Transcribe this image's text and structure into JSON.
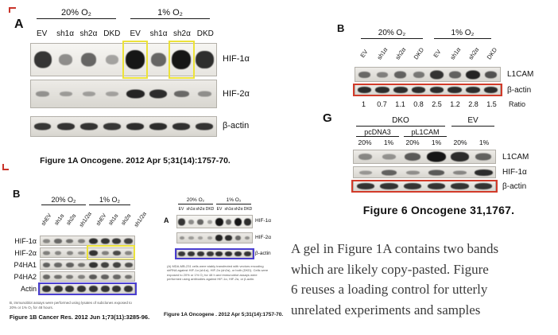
{
  "colors": {
    "yellow": "#ece23a",
    "red": "#d23b2a",
    "purple": "#4a3ed0"
  },
  "panelA": {
    "label": "A",
    "groups": [
      "20% O₂",
      "1% O₂"
    ],
    "lanes": [
      "EV",
      "sh1α",
      "sh2α",
      "DKD",
      "EV",
      "sh1α",
      "sh2α",
      "DKD"
    ],
    "rows": [
      {
        "label": "HIF-1α",
        "h": 24,
        "bands": [
          0.8,
          0.25,
          0.5,
          0.12,
          1,
          0.5,
          1,
          0.85
        ],
        "boxes": [
          {
            "from": 4,
            "to": 4,
            "color": "yellow"
          },
          {
            "from": 6,
            "to": 6,
            "color": "yellow"
          }
        ]
      },
      {
        "label": "HIF-2α",
        "h": 12,
        "bands": [
          0.18,
          0.12,
          0.1,
          0.08,
          0.9,
          0.85,
          0.45,
          0.2
        ]
      },
      {
        "label": "β-actin",
        "h": 10,
        "bands": [
          0.78,
          0.8,
          0.8,
          0.78,
          0.85,
          0.85,
          0.82,
          0.8
        ]
      }
    ],
    "caption": "Figure 1A Oncogene. 2012 Apr 5;31(14):1757-70."
  },
  "panelB_left": {
    "label": "B",
    "groups": [
      "20% O₂",
      "1% O₂"
    ],
    "lanes": [
      "shEV",
      "sh1α",
      "sh2α",
      "sh1/2α",
      "shEV",
      "sh1α",
      "sh2α",
      "sh1/2α"
    ],
    "rows": [
      {
        "label": "HIF-1α",
        "h": 8,
        "bands": [
          0.25,
          0.45,
          0.4,
          0.3,
          0.85,
          0.8,
          0.78,
          0.7
        ]
      },
      {
        "label": "HIF-2α",
        "h": 8,
        "bands": [
          0.3,
          0.25,
          0.25,
          0.2,
          0.8,
          0.3,
          0.65,
          0.25
        ],
        "boxes": [
          {
            "from": 4,
            "to": 7,
            "color": "yellow"
          }
        ]
      },
      {
        "label": "P4HA1",
        "h": 8,
        "bands": [
          0.5,
          0.45,
          0.5,
          0.4,
          0.8,
          0.7,
          0.7,
          0.6
        ]
      },
      {
        "label": "P4HA2",
        "h": 8,
        "bands": [
          0.45,
          0.4,
          0.35,
          0.3,
          0.55,
          0.5,
          0.45,
          0.4
        ]
      },
      {
        "label": "Actin",
        "h": 9,
        "bands": [
          0.8,
          0.8,
          0.8,
          0.8,
          0.8,
          0.8,
          0.8,
          0.8
        ],
        "boxes": [
          {
            "full": true,
            "color": "purple"
          }
        ]
      }
    ],
    "note": "B, immunoblot assays were performed using lysates of subclones exposed to 20% or 1% O₂ for 48 hours.",
    "caption": "Figure 1B Cancer Res. 2012 Jun 1;73(11):3285-96."
  },
  "figA_small": {
    "label": "A",
    "groups": [
      "20% O₂",
      "1% O₂"
    ],
    "lanes": [
      "EV",
      "sh1α",
      "sh2α",
      "DKD",
      "EV",
      "sh1α",
      "sh2α",
      "DKD"
    ],
    "rows": [
      {
        "label": "HIF-1α",
        "h": 10,
        "bands": [
          0.8,
          0.25,
          0.5,
          0.12,
          1,
          0.5,
          1,
          0.85
        ]
      },
      {
        "label": "HIF-2α",
        "h": 8,
        "bands": [
          0.18,
          0.12,
          0.1,
          0.08,
          0.9,
          0.85,
          0.45,
          0.2
        ]
      },
      {
        "label": "β-actin",
        "h": 7,
        "bands": [
          0.78,
          0.8,
          0.8,
          0.78,
          0.85,
          0.85,
          0.82,
          0.8
        ],
        "boxes": [
          {
            "full": true,
            "color": "purple"
          }
        ]
      }
    ],
    "note": "(A) MDA-MB-231 cells were stably transfected with vectors encoding shRNA against HIF-1α (sh1α), HIF-2α (sh2α), or both (DKD). Cells were exposed to 20% or 1% O₂ for 48 h and immunoblot assays were performed using antibodies against HIF-1α, HIF-2α, or β-actin.",
    "caption": "Figure 1A Oncogene . 2012 Apr 5;31(14):1757-70."
  },
  "panelB_right": {
    "label": "B",
    "groups": [
      "20% O₂",
      "1% O₂"
    ],
    "lanes": [
      "EV",
      "sh1α",
      "sh2α",
      "DKD",
      "EV",
      "sh1α",
      "sh2α",
      "DKD"
    ],
    "rows": [
      {
        "label": "L1CAM",
        "h": 12,
        "bands": [
          0.45,
          0.3,
          0.5,
          0.35,
          0.8,
          0.5,
          0.9,
          0.6
        ]
      },
      {
        "label": "β-actin",
        "h": 9,
        "bands": [
          0.85,
          0.85,
          0.85,
          0.85,
          0.85,
          0.85,
          0.85,
          0.85
        ],
        "boxes": [
          {
            "full": true,
            "color": "red"
          }
        ]
      }
    ],
    "ratio_values": [
      "1",
      "0.7",
      "1.1",
      "0.8",
      "2.5",
      "1.2",
      "2.8",
      "1.5"
    ],
    "ratio_label": "Ratio"
  },
  "panelG": {
    "label": "G",
    "groups": [
      "DKO",
      "EV"
    ],
    "subgroups": [
      "pcDNA3",
      "pL1CAM"
    ],
    "pct": [
      "20%",
      "1%",
      "20%",
      "1%",
      "20%",
      "1%"
    ],
    "rows": [
      {
        "label": "L1CAM",
        "h": 13,
        "bands": [
          0.25,
          0.18,
          0.55,
          1,
          0.85,
          0.5
        ]
      },
      {
        "label": "HIF-1α",
        "h": 9,
        "bands": [
          0.15,
          0.5,
          0.2,
          0.55,
          0.25,
          0.85
        ]
      },
      {
        "label": "β-actin",
        "h": 9,
        "bands": [
          0.8,
          0.8,
          0.8,
          0.8,
          0.8,
          0.8
        ],
        "boxes": [
          {
            "full": true,
            "color": "red"
          }
        ]
      }
    ],
    "caption": "Figure 6 Oncogene 31,1767."
  },
  "commentary": {
    "lines": [
      "A gel in Figure 1A contains two bands",
      "which are likely copy-pasted. Figure",
      "6 reuses a loading control for utterly",
      "unrelated experiments and samples"
    ]
  }
}
